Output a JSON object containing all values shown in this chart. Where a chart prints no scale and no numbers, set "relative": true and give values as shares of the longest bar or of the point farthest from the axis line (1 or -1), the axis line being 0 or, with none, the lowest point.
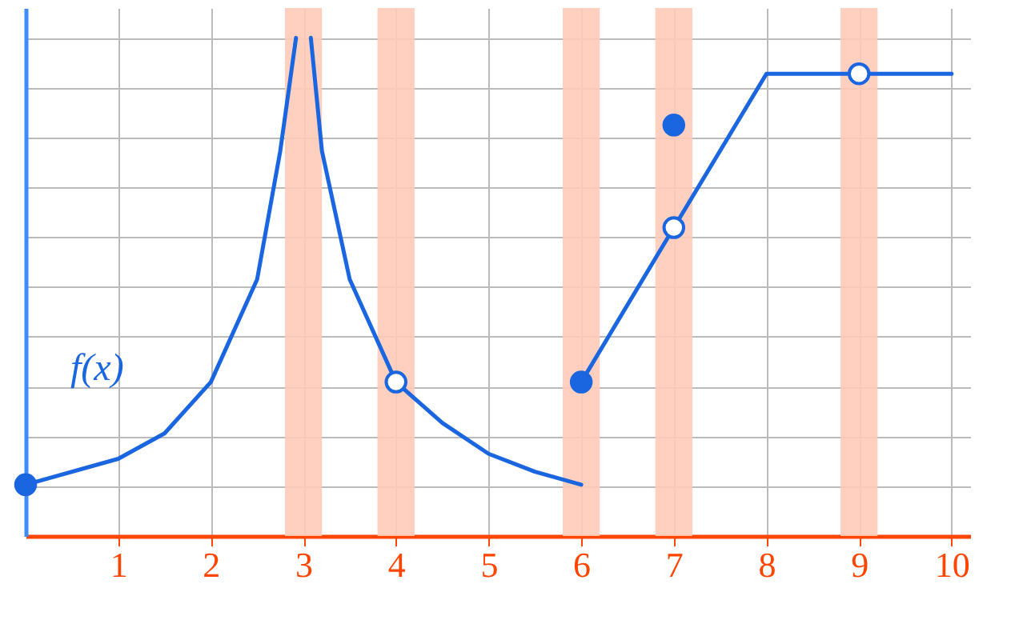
{
  "chart_data": {
    "type": "line",
    "relative": true,
    "xlim": [
      0,
      10.2
    ],
    "xticks": [
      1,
      2,
      3,
      4,
      5,
      6,
      7,
      8,
      9,
      10
    ],
    "grid": true,
    "line_style": "solid",
    "series": [
      {
        "color": "#1a66e0",
        "x": [
          0,
          1,
          1.5,
          2,
          2.5,
          2.75,
          2.92
        ],
        "values": [
          0.103,
          0.155,
          0.206,
          0.309,
          0.515,
          0.773,
          1
        ]
      },
      {
        "color": "#1a66e0",
        "x": [
          3.08,
          3.2,
          3.5,
          4,
          4.5,
          5,
          5.5,
          6
        ],
        "values": [
          1,
          0.773,
          0.515,
          0.309,
          0.227,
          0.165,
          0.129,
          0.103
        ]
      },
      {
        "color": "#1a66e0",
        "x": [
          6,
          7,
          8,
          10
        ],
        "values": [
          0.309,
          0.619,
          0.928,
          0.928
        ]
      },
      {
        "type": "scatter",
        "color": "#1a66e0",
        "marker": "circle",
        "x": [
          0,
          6,
          7
        ],
        "values": [
          0.103,
          0.309,
          0.825
        ]
      },
      {
        "type": "scatter",
        "color": "#ffffff",
        "marker": "circle",
        "x": [
          4,
          7,
          9
        ],
        "values": [
          0.309,
          0.619,
          0.928
        ]
      }
    ],
    "bands": [
      {
        "axis": "x",
        "from": 2.8,
        "to": 3.2,
        "color": "#ffcbb8"
      },
      {
        "axis": "x",
        "from": 3.8,
        "to": 4.2,
        "color": "#ffcbb8"
      },
      {
        "axis": "x",
        "from": 5.8,
        "to": 6.2,
        "color": "#ffcbb8"
      },
      {
        "axis": "x",
        "from": 6.8,
        "to": 7.2,
        "color": "#ffcbb8"
      },
      {
        "axis": "x",
        "from": 8.8,
        "to": 9.2,
        "color": "#ffcbb8"
      }
    ],
    "annotations": [
      "f(x)"
    ]
  }
}
